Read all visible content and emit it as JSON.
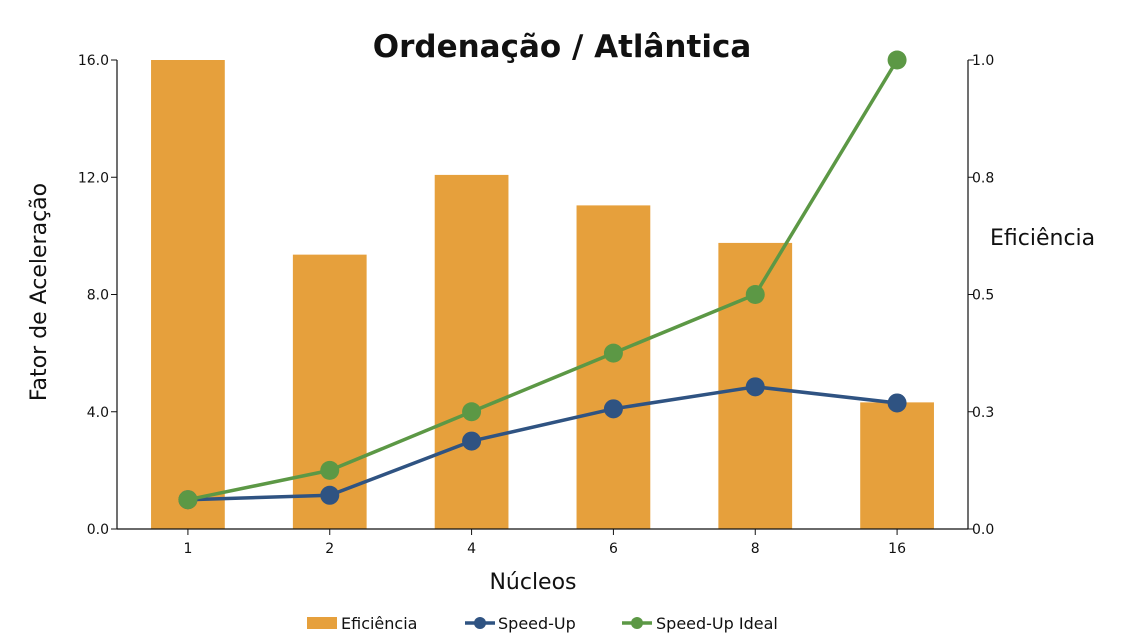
{
  "chart_data": {
    "type": "bar+line",
    "title": "Ordenação / Atlântica",
    "xlabel": "Núcleos",
    "ylabel_left": "Fator de Aceleração",
    "ylabel_right": "Eficiência",
    "categories": [
      "1",
      "2",
      "4",
      "6",
      "8",
      "16"
    ],
    "ylim_left": [
      0,
      16
    ],
    "ylim_right": [
      0,
      1
    ],
    "yticks_left": [
      "0.0",
      "4.0",
      "8.0",
      "12.0",
      "16.0"
    ],
    "yticks_right": [
      "0.0",
      "0.3",
      "0.5",
      "0.8",
      "1.0"
    ],
    "grid": false,
    "legend_position": "bottom",
    "series": [
      {
        "name": "Eficiência",
        "kind": "bar",
        "axis": "right",
        "color": "#E6A03C",
        "values": [
          1.0,
          0.585,
          0.755,
          0.69,
          0.61,
          0.27
        ]
      },
      {
        "name": "Speed-Up",
        "kind": "line",
        "axis": "left",
        "color": "#2F5382",
        "values": [
          1.0,
          1.15,
          3.0,
          4.1,
          4.85,
          4.3
        ]
      },
      {
        "name": "Speed-Up Ideal",
        "kind": "line",
        "axis": "left",
        "color": "#5C9845",
        "values": [
          1,
          2,
          4,
          6,
          8,
          16
        ]
      }
    ]
  }
}
